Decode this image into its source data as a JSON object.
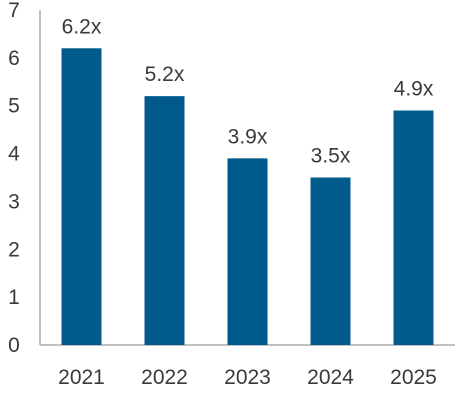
{
  "chart_data": {
    "type": "bar",
    "categories": [
      "2021",
      "2022",
      "2023",
      "2024",
      "2025"
    ],
    "values": [
      6.2,
      5.2,
      3.9,
      3.5,
      4.9
    ],
    "data_labels": [
      "6.2x",
      "5.2x",
      "3.9x",
      "3.5x",
      "4.9x"
    ],
    "yticks": [
      "0",
      "1",
      "2",
      "3",
      "4",
      "5",
      "6",
      "7"
    ],
    "ylim": [
      0,
      7
    ],
    "grid": false,
    "legend": false,
    "bar_color": "#005a8c",
    "title": "",
    "xlabel": "",
    "ylabel": ""
  }
}
